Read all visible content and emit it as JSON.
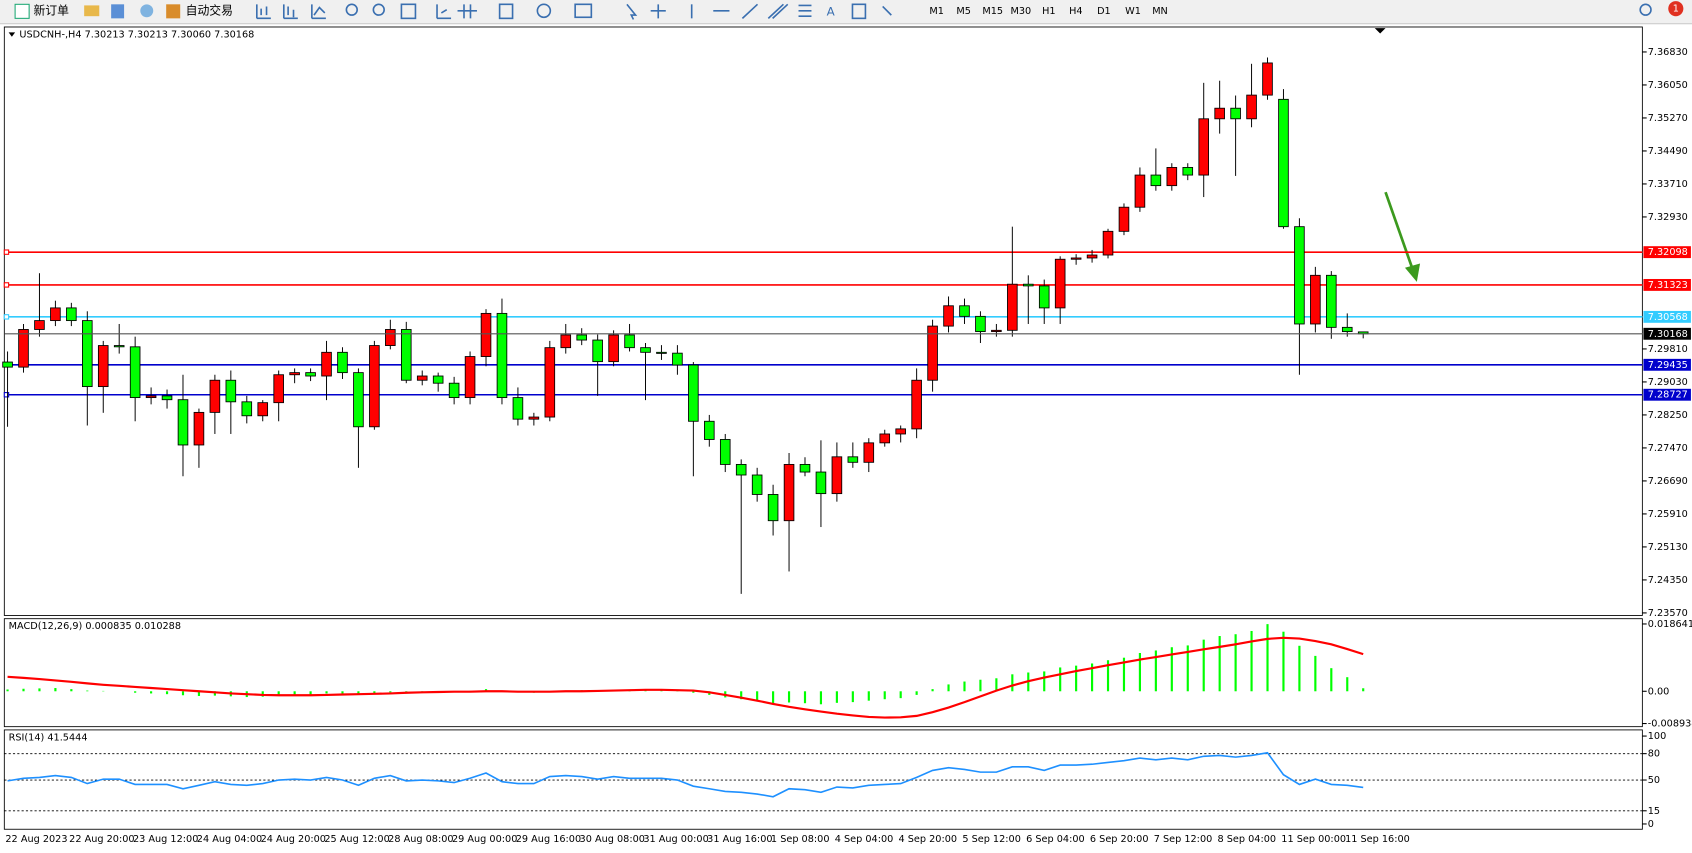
{
  "toolbar": {
    "buttons": [
      "新订单",
      "自动交易"
    ],
    "timeframes": [
      "M1",
      "M5",
      "M15",
      "M30",
      "H1",
      "H4",
      "D1",
      "W1",
      "MN"
    ],
    "notification": "1"
  },
  "chart_data": [
    {
      "type": "candlestick",
      "title": "USDCNH-,H4 7.30213 7.30213 7.30060 7.30168",
      "up_color": "#ff0000",
      "down_color": "#00ff00",
      "categories": [
        "22 Aug 2023",
        null,
        null,
        null,
        "22 Aug 20:00",
        null,
        null,
        null,
        "23 Aug 12:00",
        null,
        null,
        null,
        "24 Aug 04:00",
        null,
        null,
        null,
        "24 Aug 20:00",
        null,
        null,
        null,
        "25 Aug 12:00",
        null,
        null,
        null,
        "28 Aug 08:00",
        null,
        null,
        null,
        "29 Aug 00:00",
        null,
        null,
        null,
        "29 Aug 16:00",
        null,
        null,
        null,
        "30 Aug 08:00",
        null,
        null,
        null,
        "31 Aug 00:00",
        null,
        null,
        null,
        "31 Aug 16:00",
        null,
        null,
        null,
        "1 Sep 08:00",
        null,
        null,
        null,
        "4 Sep 04:00",
        null,
        null,
        null,
        "4 Sep 20:00",
        null,
        null,
        null,
        "5 Sep 12:00",
        null,
        null,
        null,
        "6 Sep 04:00",
        null,
        null,
        null,
        "6 Sep 20:00",
        null,
        null,
        null,
        "7 Sep 12:00",
        null,
        null,
        null,
        "8 Sep 04:00",
        null,
        null,
        null,
        "11 Sep 00:00",
        null,
        null,
        null,
        "11 Sep 16:00",
        null
      ],
      "ohlc": [
        [
          7.295,
          7.2975,
          7.2797,
          7.2938
        ],
        [
          7.2938,
          7.304,
          7.2925,
          7.3027
        ],
        [
          7.3027,
          7.316,
          7.301,
          7.3048
        ],
        [
          7.3048,
          7.3095,
          7.3035,
          7.3078
        ],
        [
          7.3078,
          7.309,
          7.3035,
          7.3048
        ],
        [
          7.3048,
          7.307,
          7.28,
          7.2892
        ],
        [
          7.2892,
          7.3,
          7.283,
          7.2989
        ],
        [
          7.2989,
          7.304,
          7.297,
          7.2986
        ],
        [
          7.2986,
          7.301,
          7.281,
          7.2866
        ],
        [
          7.2866,
          7.289,
          7.285,
          7.287
        ],
        [
          7.287,
          7.2885,
          7.284,
          7.2861
        ],
        [
          7.2861,
          7.292,
          7.268,
          7.2754
        ],
        [
          7.2754,
          7.284,
          7.27,
          7.2831
        ],
        [
          7.2831,
          7.292,
          7.278,
          7.2907
        ],
        [
          7.2907,
          7.293,
          7.278,
          7.2856
        ],
        [
          7.2856,
          7.287,
          7.2805,
          7.2823
        ],
        [
          7.2823,
          7.286,
          7.281,
          7.2854
        ],
        [
          7.2854,
          7.293,
          7.281,
          7.292
        ],
        [
          7.292,
          7.2935,
          7.29,
          7.2925
        ],
        [
          7.2925,
          7.2935,
          7.2905,
          7.2917
        ],
        [
          7.2917,
          7.3,
          7.286,
          7.2973
        ],
        [
          7.2973,
          7.2985,
          7.291,
          7.2925
        ],
        [
          7.2925,
          7.2935,
          7.27,
          7.2797
        ],
        [
          7.2797,
          7.3,
          7.279,
          7.2989
        ],
        [
          7.2989,
          7.305,
          7.298,
          7.3027
        ],
        [
          7.3027,
          7.3045,
          7.29,
          7.2907
        ],
        [
          7.2907,
          7.293,
          7.2895,
          7.2917
        ],
        [
          7.2917,
          7.2925,
          7.288,
          7.29
        ],
        [
          7.29,
          7.2915,
          7.285,
          7.2866
        ],
        [
          7.2866,
          7.2975,
          7.285,
          7.2963
        ],
        [
          7.2963,
          7.3075,
          7.294,
          7.3065
        ],
        [
          7.3065,
          7.31,
          7.285,
          7.2866
        ],
        [
          7.2866,
          7.289,
          7.28,
          7.2815
        ],
        [
          7.2815,
          7.283,
          7.28,
          7.282
        ],
        [
          7.282,
          7.3,
          7.281,
          7.2984
        ],
        [
          7.2984,
          7.304,
          7.297,
          7.3014
        ],
        [
          7.3014,
          7.303,
          7.299,
          7.3002
        ],
        [
          7.3002,
          7.3015,
          7.287,
          7.2951
        ],
        [
          7.2951,
          7.3025,
          7.294,
          7.3014
        ],
        [
          7.3014,
          7.304,
          7.2975,
          7.2984
        ],
        [
          7.2984,
          7.2995,
          7.286,
          7.2973
        ],
        [
          7.2973,
          7.299,
          7.2955,
          7.2971
        ],
        [
          7.2971,
          7.299,
          7.292,
          7.2943
        ],
        [
          7.2943,
          7.295,
          7.268,
          7.281
        ],
        [
          7.281,
          7.2825,
          7.275,
          7.2767
        ],
        [
          7.2767,
          7.278,
          7.269,
          7.2708
        ],
        [
          7.2708,
          7.272,
          7.2402,
          7.2683
        ],
        [
          7.2683,
          7.27,
          7.262,
          7.2637
        ],
        [
          7.2637,
          7.266,
          7.254,
          7.2575
        ],
        [
          7.2575,
          7.2735,
          7.2455,
          7.2708
        ],
        [
          7.2708,
          7.2725,
          7.268,
          7.269
        ],
        [
          7.269,
          7.2765,
          7.256,
          7.2639
        ],
        [
          7.2639,
          7.276,
          7.262,
          7.2726
        ],
        [
          7.2726,
          7.276,
          7.27,
          7.2713
        ],
        [
          7.2713,
          7.277,
          7.269,
          7.2759
        ],
        [
          7.2759,
          7.279,
          7.275,
          7.278
        ],
        [
          7.278,
          7.28,
          7.276,
          7.2792
        ],
        [
          7.2792,
          7.2935,
          7.277,
          7.2907
        ],
        [
          7.2907,
          7.305,
          7.288,
          7.3035
        ],
        [
          7.3035,
          7.3105,
          7.302,
          7.3083
        ],
        [
          7.3083,
          7.31,
          7.304,
          7.3058
        ],
        [
          7.3058,
          7.307,
          7.2995,
          7.3022
        ],
        [
          7.3022,
          7.304,
          7.301,
          7.3025
        ],
        [
          7.3025,
          7.327,
          7.301,
          7.3134
        ],
        [
          7.3134,
          7.3155,
          7.304,
          7.313
        ],
        [
          7.313,
          7.3145,
          7.304,
          7.3078
        ],
        [
          7.3078,
          7.32,
          7.304,
          7.3193
        ],
        [
          7.3193,
          7.3205,
          7.318,
          7.3196
        ],
        [
          7.3196,
          7.3215,
          7.3185,
          7.3203
        ],
        [
          7.3203,
          7.3265,
          7.3195,
          7.3259
        ],
        [
          7.3259,
          7.3325,
          7.325,
          7.3316
        ],
        [
          7.3316,
          7.341,
          7.3305,
          7.3392
        ],
        [
          7.3392,
          7.3455,
          7.3355,
          7.3367
        ],
        [
          7.3367,
          7.342,
          7.3355,
          7.341
        ],
        [
          7.341,
          7.342,
          7.338,
          7.3392
        ],
        [
          7.3392,
          7.361,
          7.334,
          7.3525
        ],
        [
          7.3525,
          7.3615,
          7.349,
          7.355
        ],
        [
          7.355,
          7.358,
          7.339,
          7.3525
        ],
        [
          7.3525,
          7.3655,
          7.3505,
          7.3581
        ],
        [
          7.3581,
          7.367,
          7.357,
          7.3657
        ],
        [
          7.3571,
          7.3595,
          7.3265,
          7.327
        ],
        [
          7.327,
          7.329,
          7.292,
          7.304
        ],
        [
          7.304,
          7.3175,
          7.302,
          7.3155
        ],
        [
          7.3155,
          7.3165,
          7.3005,
          7.3032
        ],
        [
          7.3032,
          7.3065,
          7.301,
          7.3022
        ],
        [
          7.30213,
          7.30213,
          7.3006,
          7.30168
        ]
      ],
      "ylim": [
        7.2351,
        7.3742
      ],
      "yticks": [
        {
          "value": 7.3683,
          "label": "7.36830"
        },
        {
          "value": 7.3605,
          "label": "7.36050"
        },
        {
          "value": 7.3527,
          "label": "7.35270"
        },
        {
          "value": 7.3449,
          "label": "7.34490"
        },
        {
          "value": 7.3371,
          "label": "7.33710"
        },
        {
          "value": 7.3293,
          "label": "7.32930"
        },
        {
          "value": 7.2981,
          "label": "7.29810"
        },
        {
          "value": 7.2903,
          "label": "7.29030"
        },
        {
          "value": 7.2825,
          "label": "7.28250"
        },
        {
          "value": 7.2747,
          "label": "7.27470"
        },
        {
          "value": 7.2669,
          "label": "7.26690"
        },
        {
          "value": 7.2591,
          "label": "7.25910"
        },
        {
          "value": 7.2513,
          "label": "7.25130"
        },
        {
          "value": 7.2435,
          "label": "7.24350"
        },
        {
          "value": 7.2357,
          "label": "7.23570"
        }
      ],
      "levels": [
        {
          "value": 7.32098,
          "color": "#ff0000"
        },
        {
          "value": 7.31323,
          "color": "#ff0000"
        },
        {
          "value": 7.30568,
          "color": "#33ccff"
        },
        {
          "value": 7.29435,
          "color": "#0000cc"
        },
        {
          "value": 7.28727,
          "color": "#0000cc"
        }
      ]
    },
    {
      "type": "macd",
      "title": "MACD(12,26,9) 0.000835 0.010288",
      "histogram": {
        "color": "#00ff00",
        "values": [
          0.0005,
          0.0007,
          0.0008,
          0.0009,
          0.0006,
          0.0002,
          0.0001,
          0.0,
          -0.0004,
          -0.0006,
          -0.0008,
          -0.0011,
          -0.0013,
          -0.0012,
          -0.0014,
          -0.0016,
          -0.0015,
          -0.0012,
          -0.001,
          -0.0009,
          -0.0006,
          -0.0006,
          -0.0009,
          -0.0006,
          -0.0003,
          -0.0005,
          -0.0004,
          -0.0004,
          -0.0003,
          0.0001,
          0.0006,
          0.0002,
          -0.0002,
          -0.0004,
          -0.0001,
          0.0002,
          0.0003,
          0.0002,
          0.0004,
          0.0004,
          0.0003,
          0.0003,
          0.0002,
          -0.0004,
          -0.001,
          -0.0017,
          -0.0022,
          -0.0028,
          -0.0033,
          -0.0031,
          -0.0033,
          -0.0036,
          -0.0032,
          -0.003,
          -0.0026,
          -0.0022,
          -0.0019,
          -0.001,
          0.0006,
          0.0019,
          0.0027,
          0.0032,
          0.0036,
          0.0047,
          0.0052,
          0.0055,
          0.0066,
          0.0071,
          0.0077,
          0.0086,
          0.0093,
          0.0106,
          0.0113,
          0.0122,
          0.0127,
          0.0143,
          0.0153,
          0.0158,
          0.0167,
          0.0186,
          0.0165,
          0.0126,
          0.0098,
          0.0064,
          0.0039,
          0.000835
        ]
      },
      "signal": {
        "color": "#ff0000",
        "values": [
          0.004,
          0.0037,
          0.0034,
          0.003,
          0.0026,
          0.0022,
          0.0018,
          0.0015,
          0.0012,
          0.0009,
          0.0006,
          0.0003,
          0.0,
          -0.0003,
          -0.0006,
          -0.0008,
          -0.001,
          -0.0011,
          -0.0011,
          -0.0011,
          -0.001,
          -0.0009,
          -0.0008,
          -0.0007,
          -0.0006,
          -0.0004,
          -0.0003,
          -0.0002,
          -0.0001,
          -0.0001,
          0.0,
          0.0,
          -0.0001,
          -0.0001,
          -0.0001,
          0.0,
          0.0,
          0.0001,
          0.0002,
          0.0003,
          0.0004,
          0.0004,
          0.0003,
          0.0002,
          -0.0003,
          -0.001,
          -0.0018,
          -0.0026,
          -0.0035,
          -0.0043,
          -0.005,
          -0.0056,
          -0.0062,
          -0.0067,
          -0.0071,
          -0.0073,
          -0.0072,
          -0.0068,
          -0.0058,
          -0.0045,
          -0.003,
          -0.0014,
          0.0002,
          0.0016,
          0.0028,
          0.0038,
          0.0047,
          0.0056,
          0.0064,
          0.0072,
          0.008,
          0.0088,
          0.0095,
          0.0102,
          0.0109,
          0.0116,
          0.0123,
          0.013,
          0.0138,
          0.0145,
          0.0148,
          0.0146,
          0.0139,
          0.013,
          0.0117,
          0.010288
        ]
      },
      "ylim": [
        -0.0098,
        0.0201
      ],
      "yticks": [
        0.018641,
        {
          "value": 0,
          "label": "0.00"
        },
        -0.008934
      ]
    },
    {
      "type": "rsi",
      "title": "RSI(14) 41.5444",
      "color": "#1e90ff",
      "values": [
        49,
        52,
        53,
        55,
        53,
        46,
        51,
        51,
        45,
        45,
        45,
        40,
        44,
        48,
        45,
        44,
        46,
        50,
        51,
        50,
        53,
        50,
        44,
        52,
        55,
        49,
        50,
        49,
        47,
        52,
        58,
        48,
        46,
        46,
        54,
        55,
        54,
        51,
        54,
        52,
        52,
        52,
        50,
        43,
        40,
        37,
        36,
        34,
        31,
        40,
        39,
        36,
        42,
        41,
        44,
        45,
        46,
        53,
        61,
        64,
        62,
        59,
        59,
        65,
        65,
        61,
        67,
        67,
        68,
        70,
        72,
        75,
        73,
        75,
        73,
        77,
        78,
        76,
        78,
        81,
        56,
        45,
        51,
        45,
        44,
        41.5444
      ],
      "ylim": [
        -6,
        107
      ],
      "yticks": [
        100,
        80,
        50,
        15,
        0
      ],
      "levels": [
        80,
        50,
        15
      ]
    }
  ]
}
